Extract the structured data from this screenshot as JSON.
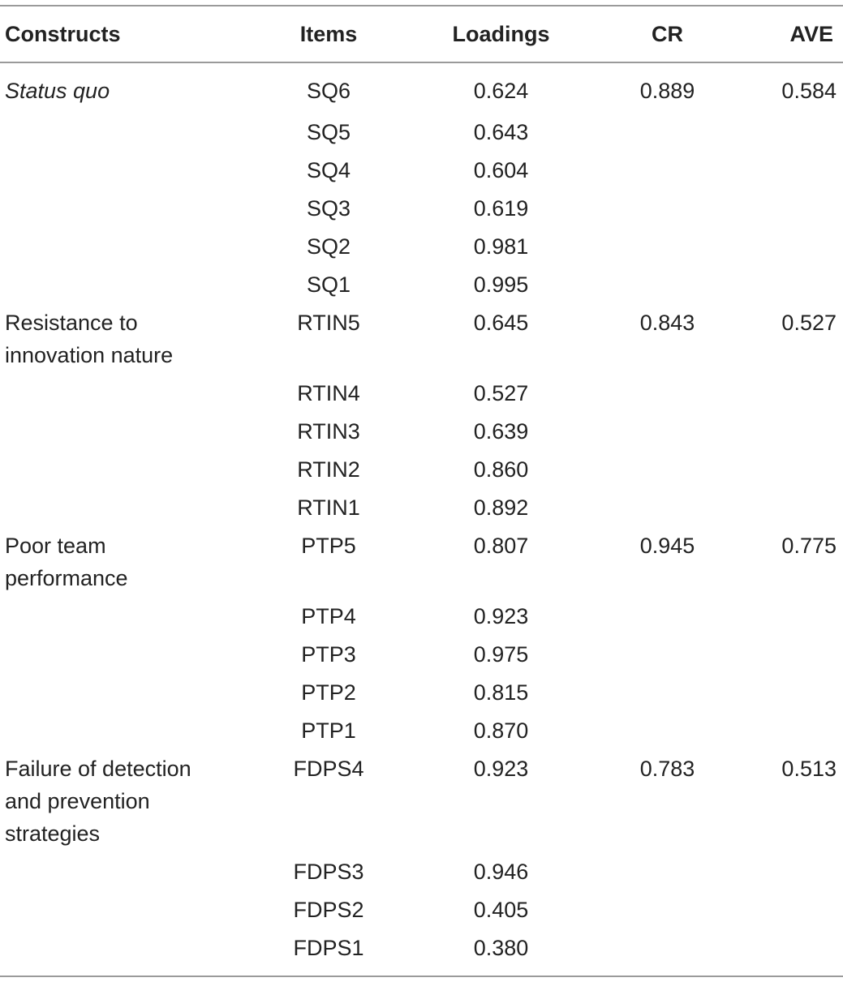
{
  "headers": [
    "Constructs",
    "Items",
    "Loadings",
    "CR",
    "AVE"
  ],
  "groups": [
    {
      "construct": "Status quo",
      "italic": true,
      "cr": "0.889",
      "ave": "0.584",
      "rows": [
        {
          "item": "SQ6",
          "loading": "0.624"
        },
        {
          "item": "SQ5",
          "loading": "0.643"
        },
        {
          "item": "SQ4",
          "loading": "0.604"
        },
        {
          "item": "SQ3",
          "loading": "0.619"
        },
        {
          "item": "SQ2",
          "loading": "0.981"
        },
        {
          "item": "SQ1",
          "loading": "0.995"
        }
      ]
    },
    {
      "construct": "Resistance to innovation nature",
      "construct_lines": [
        "Resistance to",
        "innovation nature"
      ],
      "italic": false,
      "cr": "0.843",
      "ave": "0.527",
      "rows": [
        {
          "item": "RTIN5",
          "loading": "0.645"
        },
        {
          "item": "RTIN4",
          "loading": "0.527"
        },
        {
          "item": "RTIN3",
          "loading": "0.639"
        },
        {
          "item": "RTIN2",
          "loading": "0.860"
        },
        {
          "item": "RTIN1",
          "loading": "0.892"
        }
      ]
    },
    {
      "construct": "Poor team performance",
      "construct_lines": [
        "Poor team",
        "performance"
      ],
      "italic": false,
      "cr": "0.945",
      "ave": "0.775",
      "rows": [
        {
          "item": "PTP5",
          "loading": "0.807"
        },
        {
          "item": "PTP4",
          "loading": "0.923"
        },
        {
          "item": "PTP3",
          "loading": "0.975"
        },
        {
          "item": "PTP2",
          "loading": "0.815"
        },
        {
          "item": "PTP1",
          "loading": "0.870"
        }
      ]
    },
    {
      "construct": "Failure of detection and prevention strategies",
      "construct_lines": [
        "Failure of detection",
        "and prevention",
        "strategies"
      ],
      "italic": false,
      "cr": "0.783",
      "ave": "0.513",
      "rows": [
        {
          "item": "FDPS4",
          "loading": "0.923"
        },
        {
          "item": "FDPS3",
          "loading": "0.946"
        },
        {
          "item": "FDPS2",
          "loading": "0.405"
        },
        {
          "item": "FDPS1",
          "loading": "0.380"
        }
      ]
    }
  ]
}
